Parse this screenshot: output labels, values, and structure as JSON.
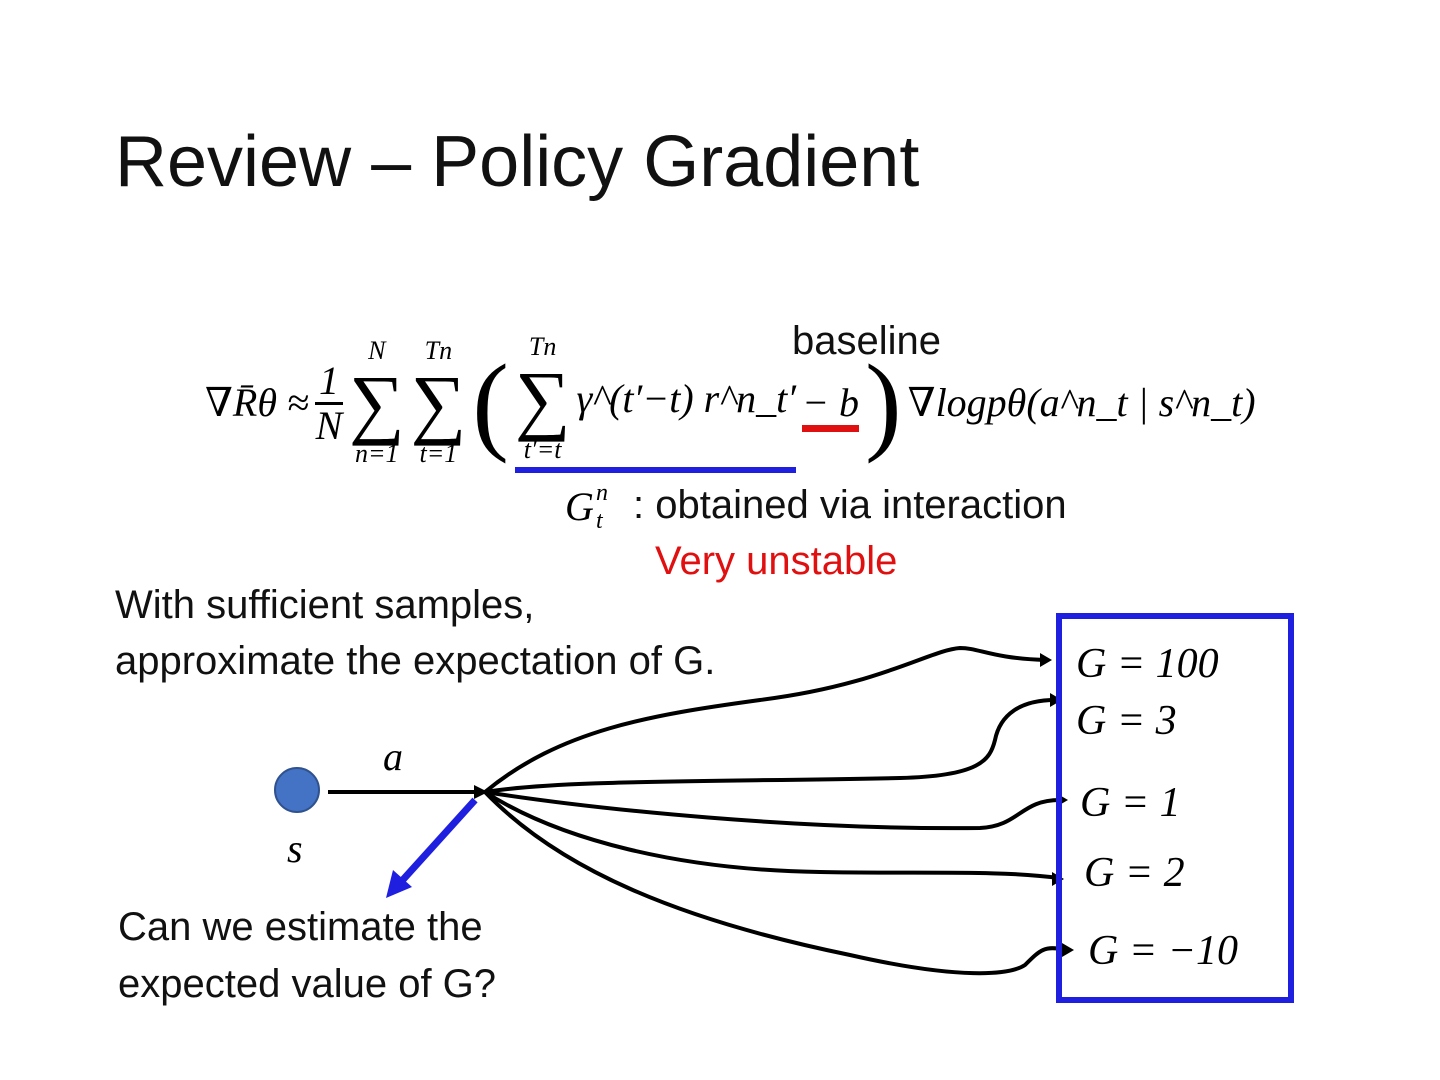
{
  "title": "Review – Policy Gradient",
  "formula": {
    "lhs": "∇R̄θ ≈",
    "frac_num": "1",
    "frac_den": "N",
    "sum1_top": "N",
    "sum1_bottom": "n=1",
    "sum2_top": "Tn",
    "sum2_bottom": "t=1",
    "sum3_top": "Tn",
    "sum3_bottom": "t′=t",
    "term": "γ^(t′−t) r^n_t′",
    "minus_b": "− b",
    "rhs": "∇logpθ(a^n_t | s^n_t)"
  },
  "annotations": {
    "baseline": "baseline",
    "gtn": "G",
    "gtn_desc": ": obtained via interaction",
    "unstable": "Very unstable"
  },
  "colors": {
    "blue_underline": "#1f1fe0",
    "red_mark": "#e01010",
    "unstable_text": "#e01010",
    "state_node": "#4472C4",
    "box": "#1f1fe0"
  },
  "text_left": {
    "line1": "With sufficient samples,",
    "line2": "approximate the expectation of G."
  },
  "diagram": {
    "action": "a",
    "state": "s",
    "question1": "Can we estimate the",
    "question2": "expected value of G?",
    "outcomes": [
      "G = 100",
      "G = 3",
      "G = 1",
      "G = 2",
      "G = −10"
    ]
  }
}
